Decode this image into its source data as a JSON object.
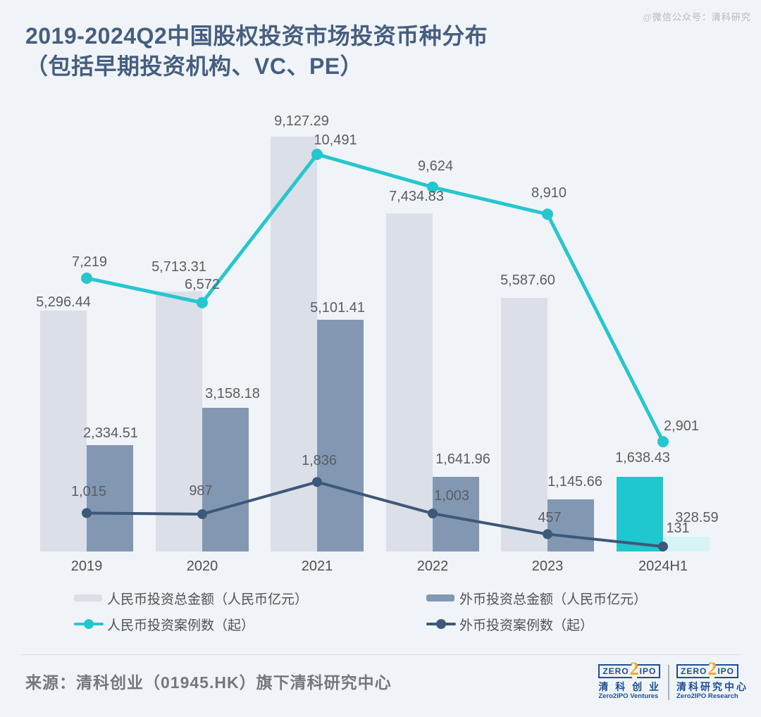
{
  "watermark": "@微信公众号：清科研究",
  "title": {
    "line1": "2019-2024Q2中国股权投资市场投资币种分布",
    "line2": "（包括早期投资机构、VC、PE）"
  },
  "chart_data": {
    "type": "bar+line combo, dual hidden axes, data labels on every point",
    "categories": [
      "2019",
      "2020",
      "2021",
      "2022",
      "2023",
      "2024H1"
    ],
    "series": [
      {
        "name": "人民币投资总金额（人民币亿元）",
        "kind": "bar",
        "axis": "amount",
        "color": "#dbdfe8",
        "final_period_color": "#1fc7cf",
        "values": [
          5296.44,
          5713.31,
          9127.29,
          7434.83,
          5587.6,
          1638.43
        ],
        "labels": [
          "5,296.44",
          "5,713.31",
          "9,127.29",
          "7,434.83",
          "5,587.60",
          "1,638.43"
        ],
        "label_offsets": [
          [
            0,
            3
          ],
          [
            0,
            -20
          ],
          [
            11,
            -7
          ],
          [
            10,
            -9
          ],
          [
            5,
            -10
          ],
          [
            4,
            -12
          ]
        ]
      },
      {
        "name": "外币投资总金额（人民币亿元）",
        "kind": "bar",
        "axis": "amount",
        "color": "#8298b2",
        "final_period_color": "#d6f3f6",
        "values": [
          2334.51,
          3158.18,
          5101.41,
          1641.96,
          1145.66,
          328.59
        ],
        "labels": [
          "2,334.51",
          "3,158.18",
          "5,101.41",
          "1,641.96",
          "1,145.66",
          "328.59"
        ],
        "label_offsets": [
          [
            1,
            -2
          ],
          [
            10,
            -5
          ],
          [
            -4,
            -2
          ],
          [
            10,
            -10
          ],
          [
            6,
            -10
          ],
          [
            15,
            -12
          ]
        ]
      },
      {
        "name": "人民币投资案例数（起）",
        "kind": "line",
        "axis": "count",
        "color": "#26c6ce",
        "stroke_width": 5,
        "dot_radius": 8,
        "values": [
          7219,
          6572,
          10491,
          9624,
          8910,
          2901
        ],
        "labels": [
          "7,219",
          "6,572",
          "10,491",
          "9,624",
          "8,910",
          "2,901"
        ],
        "label_offsets": [
          [
            4,
            0
          ],
          [
            0,
            -3
          ],
          [
            26,
            3
          ],
          [
            4,
            -7
          ],
          [
            2,
            -7
          ],
          [
            26,
            1
          ]
        ]
      },
      {
        "name": "外币投资案例数（起）",
        "kind": "line",
        "axis": "count",
        "color": "#3d5878",
        "stroke_width": 4,
        "dot_radius": 7,
        "values": [
          1015,
          987,
          1836,
          1003,
          457,
          131
        ],
        "labels": [
          "1,015",
          "987",
          "1,836",
          "1,003",
          "457",
          "131"
        ],
        "label_offsets": [
          [
            3,
            -7
          ],
          [
            -2,
            -10
          ],
          [
            3,
            -7
          ],
          [
            27,
            -2
          ],
          [
            3,
            0
          ],
          [
            21,
            -3
          ]
        ]
      }
    ],
    "axes": {
      "amount_axis_max": 10000,
      "count_axis_max": 12000,
      "axes_visible": false,
      "grid": false
    },
    "legend_position": "bottom"
  },
  "footer": {
    "source": "来源：清科创业（01945.HK）旗下清科研究中心"
  },
  "logos": {
    "ventures": {
      "brand_zero": "ZERO",
      "brand_two": "2",
      "brand_ipo": "IPO",
      "zh": "清 科 创 业",
      "en": "Zero2IPO Ventures"
    },
    "research": {
      "brand_zero": "ZERO",
      "brand_two": "2",
      "brand_ipo": "IPO",
      "zh": "清科研究中心",
      "en": "Zero2IPO Research"
    }
  },
  "colors": {
    "background": "#f0f4f8",
    "title": "#465e80",
    "value_label": "#595d65",
    "logo_blue": "#1d4f94",
    "logo_orange": "#f5a623"
  }
}
